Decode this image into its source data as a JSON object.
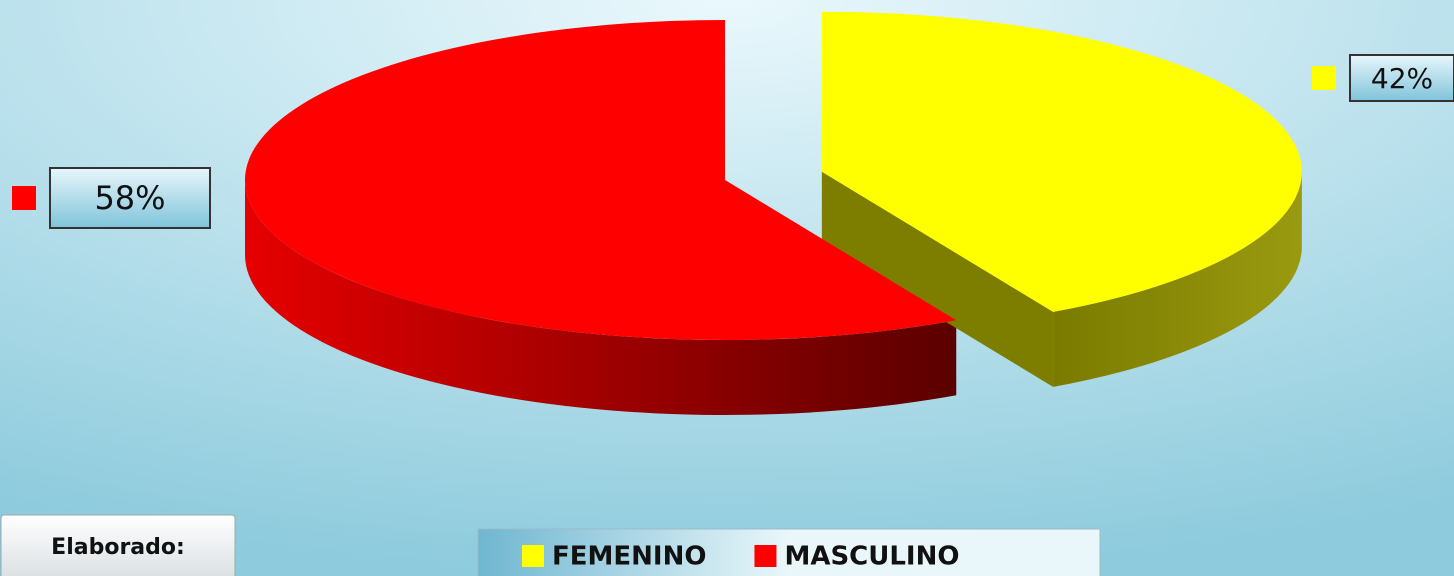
{
  "chart_data": {
    "type": "pie",
    "categories": [
      "FEMENINO",
      "MASCULINO"
    ],
    "values": [
      42,
      58
    ],
    "value_labels": [
      "42%",
      "58%"
    ],
    "colors": [
      "#ffff00",
      "#ff0000"
    ],
    "legend": "bottom",
    "annotation": "Elaborado:"
  }
}
